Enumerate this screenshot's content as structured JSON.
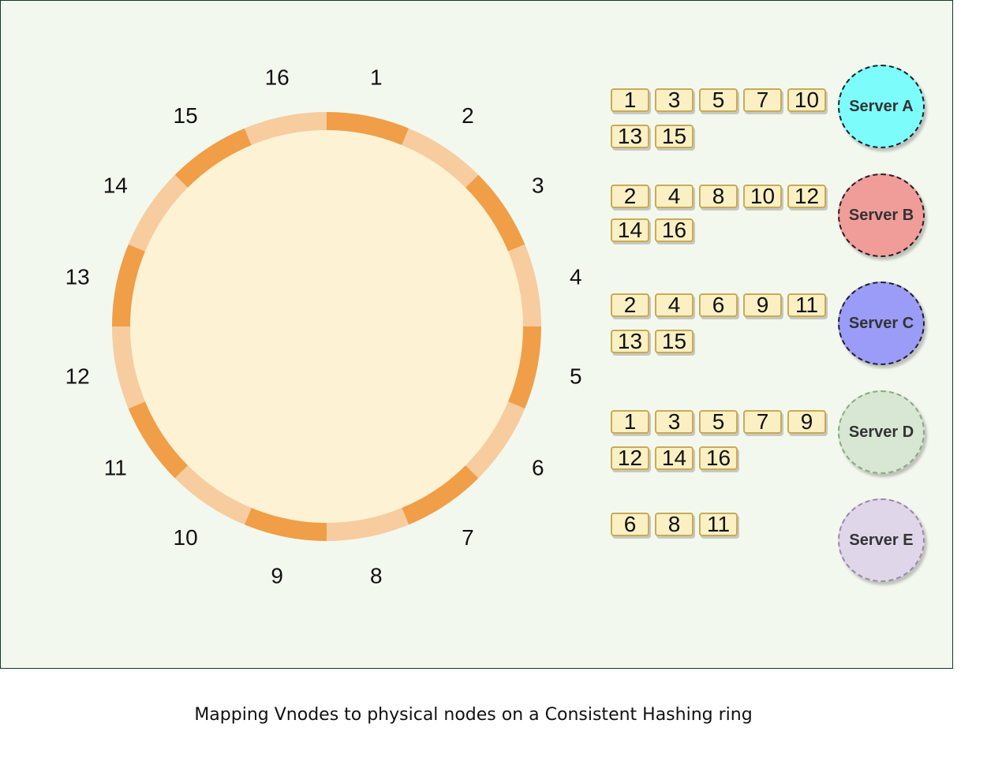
{
  "ring": {
    "vnodes": [
      "1",
      "2",
      "3",
      "4",
      "5",
      "6",
      "7",
      "8",
      "9",
      "10",
      "11",
      "12",
      "13",
      "14",
      "15",
      "16"
    ],
    "colors": {
      "dark": "#f09e47",
      "light": "#f7cc9e",
      "fill": "#fdf2d3"
    }
  },
  "servers": [
    {
      "name": "Server A",
      "color": "#7dfcfc",
      "border": "#222222",
      "rows": [
        [
          "1",
          "3",
          "5",
          "7",
          "10"
        ],
        [
          "13",
          "15"
        ]
      ]
    },
    {
      "name": "Server B",
      "color": "#f09d9a",
      "border": "#222222",
      "rows": [
        [
          "2",
          "4",
          "8",
          "10",
          "12"
        ],
        [
          "14",
          "16"
        ]
      ]
    },
    {
      "name": "Server C",
      "color": "#9b9cf7",
      "border": "#222222",
      "rows": [
        [
          "2",
          "4",
          "6",
          "9",
          "11"
        ],
        [
          "13",
          "15"
        ]
      ]
    },
    {
      "name": "Server D",
      "color": "#d7e7d4",
      "border": "#8aaa7e",
      "rows": [
        [
          "1",
          "3",
          "5",
          "7",
          "9"
        ],
        [
          "12",
          "14",
          "16"
        ]
      ]
    },
    {
      "name": "Server E",
      "color": "#e0d6e9",
      "border": "#9a8aaa",
      "rows": [
        [
          "6",
          "8",
          "11"
        ]
      ]
    }
  ],
  "caption": "Mapping Vnodes to physical nodes on a Consistent Hashing ring"
}
